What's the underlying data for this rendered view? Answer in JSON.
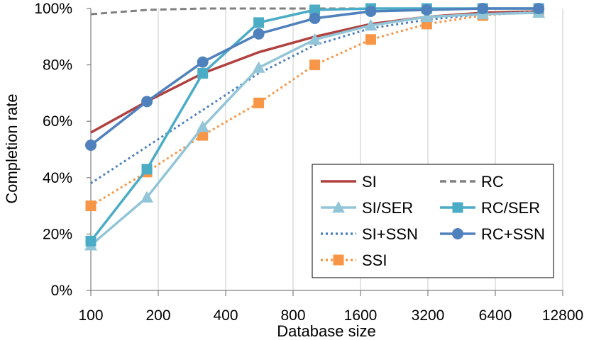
{
  "chart_data": {
    "type": "line",
    "title": "",
    "xlabel": "Database size",
    "ylabel": "Completion rate",
    "x_scale": "log2",
    "categories": [
      "100",
      "200",
      "400",
      "800",
      "1600",
      "3200",
      "6400",
      "12800"
    ],
    "ytick_labels": [
      "0%",
      "20%",
      "40%",
      "60%",
      "80%",
      "100%"
    ],
    "ylim": [
      0,
      100
    ],
    "grid": "vertical",
    "legend_position": "bottom-right inside plot",
    "series": [
      {
        "name": "SI",
        "color": "#B0413E",
        "style": "solid",
        "marker": "none",
        "x": [
          100,
          178,
          316,
          562,
          1000,
          1778,
          3162,
          5623,
          10000
        ],
        "values": [
          56,
          67,
          77,
          84.5,
          90,
          94.5,
          97,
          98.5,
          99
        ]
      },
      {
        "name": "RC",
        "color": "#808080",
        "style": "dashed",
        "marker": "none",
        "x": [
          100,
          178,
          316,
          562,
          1000,
          1778,
          3162,
          5623,
          10000
        ],
        "values": [
          98,
          99.5,
          100,
          100,
          100,
          100,
          100,
          100,
          100
        ]
      },
      {
        "name": "SI/SER",
        "color": "#93C5D8",
        "style": "solid",
        "marker": "triangle",
        "x": [
          100,
          178,
          316,
          562,
          1000,
          1778,
          3162,
          5623,
          10000
        ],
        "values": [
          16,
          33,
          58,
          79,
          89,
          94,
          97,
          98,
          98.5
        ]
      },
      {
        "name": "RC/SER",
        "color": "#4BACC6",
        "style": "solid",
        "marker": "square",
        "x": [
          100,
          178,
          316,
          562,
          1000,
          1778,
          3162,
          5623,
          10000
        ],
        "values": [
          17.5,
          43,
          77,
          95,
          99.5,
          100,
          100,
          100,
          100
        ]
      },
      {
        "name": "SI+SSN",
        "color": "#4F81BD",
        "style": "dotted",
        "marker": "none",
        "x": [
          100,
          178,
          316,
          562,
          1000,
          1778,
          3162,
          5623,
          10000
        ],
        "values": [
          38,
          51,
          64,
          77,
          87,
          93,
          96,
          98,
          99
        ]
      },
      {
        "name": "RC+SSN",
        "color": "#4F81BD",
        "style": "solid",
        "marker": "circle",
        "x": [
          100,
          178,
          316,
          562,
          1000,
          1778,
          3162,
          5623,
          10000
        ],
        "values": [
          51.5,
          67,
          81,
          91,
          96.5,
          99,
          99.5,
          100,
          100
        ]
      },
      {
        "name": "SSI",
        "color": "#F79646",
        "style": "dotted",
        "marker": "square",
        "x": [
          100,
          178,
          316,
          562,
          1000,
          1778,
          3162,
          5623,
          10000
        ],
        "values": [
          30,
          42,
          55,
          66.5,
          80,
          89,
          94.5,
          97.5,
          99
        ]
      }
    ]
  }
}
